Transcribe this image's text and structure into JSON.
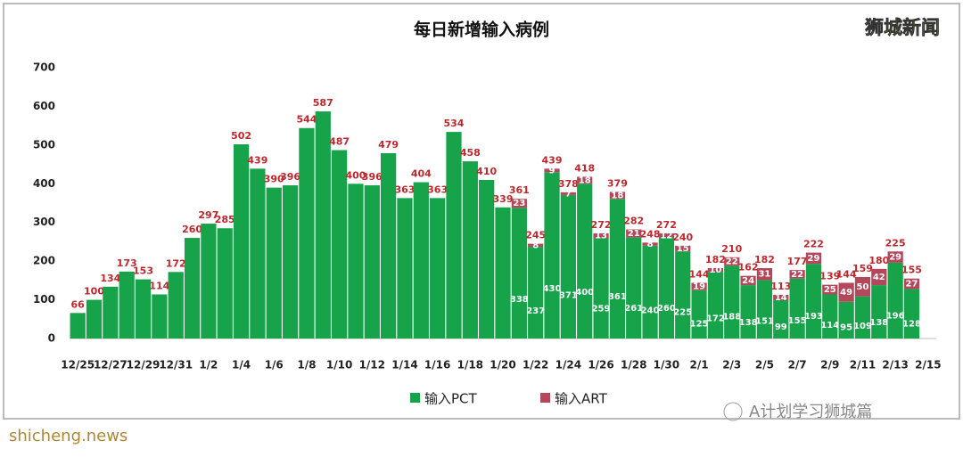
{
  "chart_data": {
    "type": "stacked_bar",
    "title": "每日新增输入病例",
    "brand": "狮城新闻",
    "categories": [
      "12/25",
      null,
      "12/27",
      null,
      "12/29",
      null,
      "12/31",
      null,
      "1/2",
      null,
      "1/4",
      null,
      "1/6",
      null,
      "1/8",
      null,
      "1/10",
      null,
      "1/12",
      null,
      "1/14",
      null,
      "1/16",
      null,
      "1/18",
      null,
      "1/20",
      null,
      "1/22",
      null,
      "1/24",
      null,
      "1/26",
      null,
      "1/28",
      null,
      "1/30",
      null,
      "2/1",
      null,
      "2/3",
      null,
      "2/5",
      null,
      "2/7",
      null,
      "2/9",
      null,
      "2/11",
      null,
      "2/13",
      null,
      "2/15"
    ],
    "series": [
      {
        "name": "输入PCT",
        "color": "#16a34a",
        "values": [
          66,
          100,
          134,
          173,
          153,
          114,
          172,
          260,
          297,
          285,
          502,
          439,
          390,
          396,
          544,
          587,
          487,
          400,
          396,
          479,
          363,
          404,
          363,
          534,
          458,
          410,
          339,
          338,
          237,
          430,
          371,
          400,
          259,
          361,
          261,
          240,
          260,
          225,
          125,
          172,
          188,
          138,
          151,
          99,
          155,
          193,
          114,
          95,
          109,
          138,
          196,
          128,
          null
        ]
      },
      {
        "name": "输入ART",
        "color": "#b5475a",
        "values": [
          null,
          null,
          null,
          null,
          null,
          null,
          null,
          null,
          null,
          null,
          null,
          null,
          null,
          null,
          null,
          null,
          null,
          null,
          null,
          null,
          null,
          null,
          null,
          null,
          null,
          null,
          null,
          23,
          8,
          9,
          7,
          18,
          13,
          18,
          21,
          8,
          12,
          15,
          19,
          10,
          22,
          24,
          31,
          14,
          22,
          29,
          25,
          49,
          50,
          42,
          29,
          27,
          null
        ]
      }
    ],
    "totals": [
      66,
      100,
      134,
      173,
      153,
      114,
      172,
      260,
      297,
      285,
      502,
      439,
      390,
      396,
      544,
      587,
      487,
      400,
      396,
      479,
      363,
      404,
      363,
      534,
      458,
      410,
      339,
      361,
      245,
      439,
      378,
      418,
      272,
      379,
      282,
      248,
      272,
      240,
      144,
      182,
      210,
      162,
      182,
      113,
      177,
      222,
      139,
      144,
      159,
      180,
      225,
      155,
      null
    ],
    "ylim": [
      0,
      700
    ],
    "yticks": [
      0,
      100,
      200,
      300,
      400,
      500,
      600,
      700
    ],
    "grid": false,
    "footer_left": "shicheng.news",
    "footer_right": "A计划学习狮城篇"
  }
}
